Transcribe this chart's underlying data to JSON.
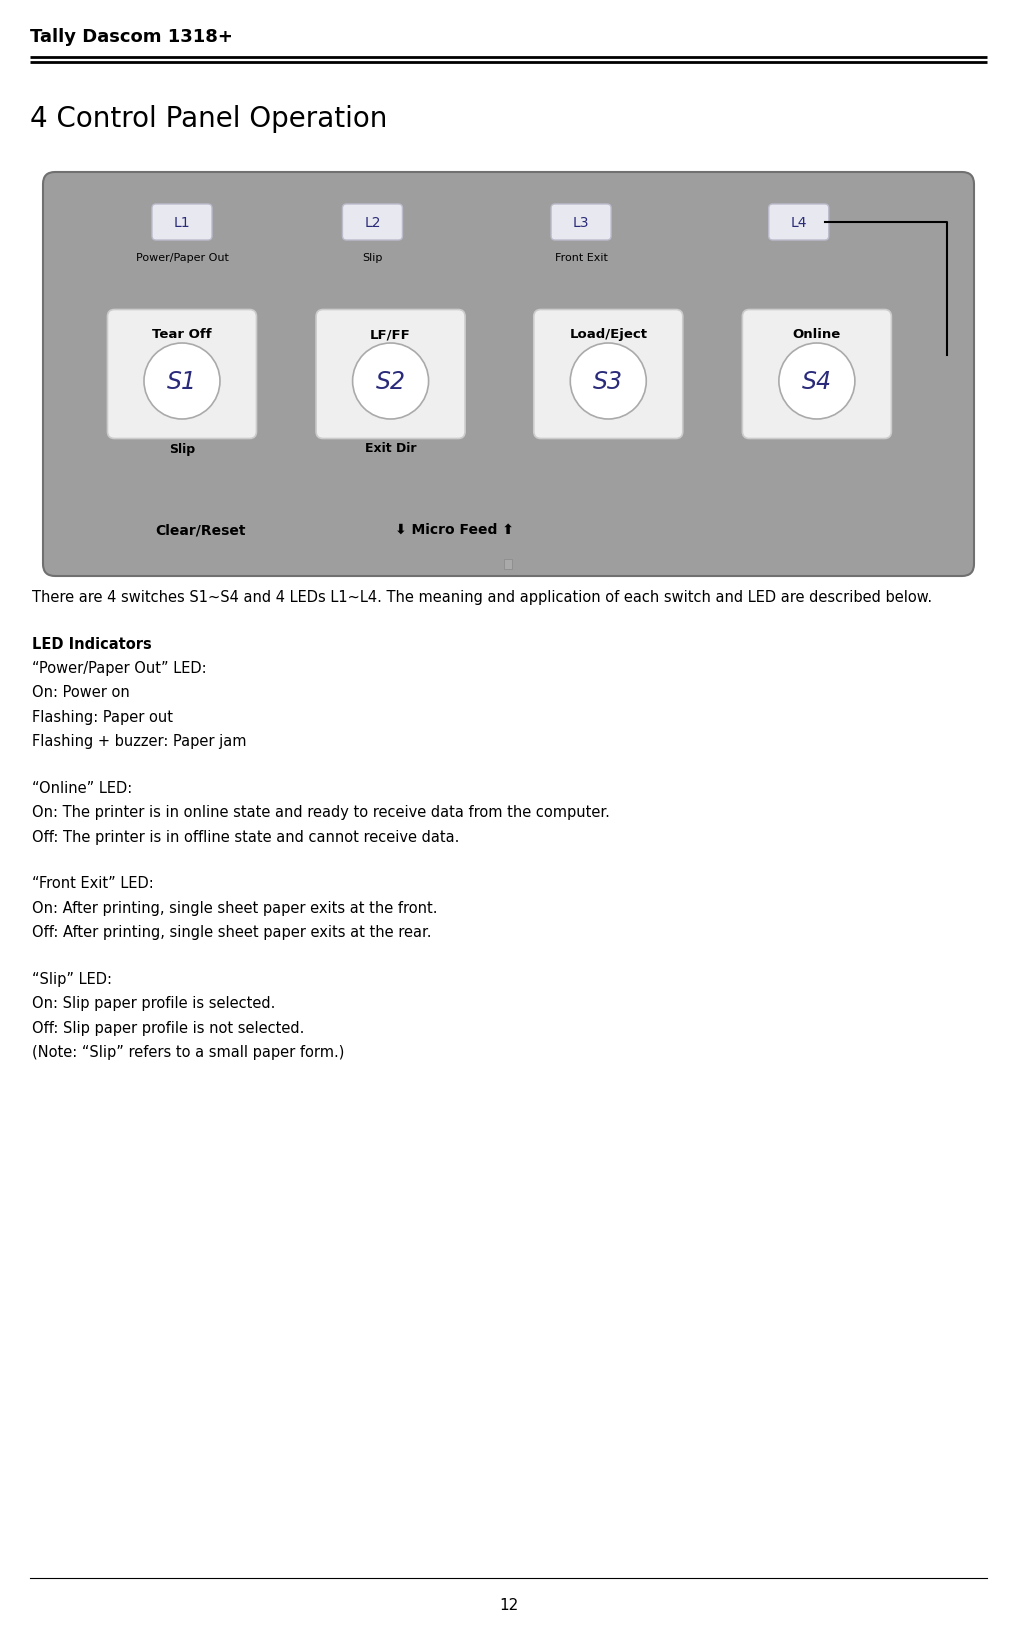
{
  "header_title": "Tally Dascom 1318+",
  "section_title": "4 Control Panel Operation",
  "panel_bg_color": "#9e9e9e",
  "panel_border_color": "#888888",
  "led_bg_color": "#e8e8f0",
  "led_text_color": "#2a2a7a",
  "switch_text_color": "#2a2a7a",
  "leds": [
    "L1",
    "L2",
    "L3",
    "L4"
  ],
  "led_labels": [
    "Power/Paper Out",
    "Slip",
    "Front Exit",
    ""
  ],
  "switches": [
    "S1",
    "S2",
    "S3",
    "S4"
  ],
  "switch_labels_top": [
    "Tear Off",
    "LF/FF",
    "Load/Eject",
    "Online"
  ],
  "switch_labels_bottom": [
    "Slip",
    "Exit Dir",
    "",
    ""
  ],
  "bottom_labels": [
    "Clear/Reset",
    "⬇ Micro Feed ⬆"
  ],
  "page_number": "12",
  "body_text": [
    {
      "text": "There are 4 switches S1~S4 and 4 LEDs L1~L4. The meaning and application of each switch and LED are described below.",
      "bold": false,
      "extra_after": false
    },
    {
      "text": "",
      "bold": false,
      "extra_after": false
    },
    {
      "text": "LED Indicators",
      "bold": true,
      "extra_after": false
    },
    {
      "text": "“Power/Paper Out” LED:",
      "bold": false,
      "extra_after": false
    },
    {
      "text": "On: Power on",
      "bold": false,
      "extra_after": false
    },
    {
      "text": "Flashing: Paper out",
      "bold": false,
      "extra_after": false
    },
    {
      "text": "Flashing + buzzer: Paper jam",
      "bold": false,
      "extra_after": false
    },
    {
      "text": "",
      "bold": false,
      "extra_after": false
    },
    {
      "text": "“Online” LED:",
      "bold": false,
      "extra_after": false
    },
    {
      "text": "On: The printer is in online state and ready to receive data from the computer.",
      "bold": false,
      "extra_after": false
    },
    {
      "text": "Off: The printer is in offline state and cannot receive data.",
      "bold": false,
      "extra_after": false
    },
    {
      "text": "",
      "bold": false,
      "extra_after": false
    },
    {
      "text": "“Front Exit” LED:",
      "bold": false,
      "extra_after": false
    },
    {
      "text": "On: After printing, single sheet paper exits at the front.",
      "bold": false,
      "extra_after": false
    },
    {
      "text": "Off: After printing, single sheet paper exits at the rear.",
      "bold": false,
      "extra_after": false
    },
    {
      "text": "",
      "bold": false,
      "extra_after": false
    },
    {
      "text": "“Slip” LED:",
      "bold": false,
      "extra_after": false
    },
    {
      "text": "On: Slip paper profile is selected.",
      "bold": false,
      "extra_after": false
    },
    {
      "text": "Off: Slip paper profile is not selected.",
      "bold": false,
      "extra_after": false
    },
    {
      "text": "(Note: “Slip” refers to a small paper form.)",
      "bold": false,
      "extra_after": false
    }
  ]
}
